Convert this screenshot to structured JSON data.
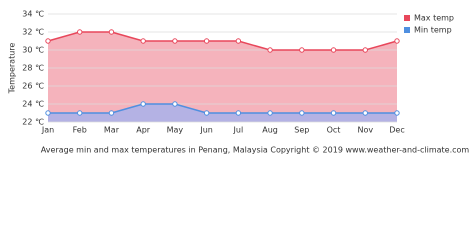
{
  "chart_data": {
    "type": "line",
    "title": "Average min and max temperatures in Penang, Malaysia   Copyright © 2019 www.weather-and-climate.com",
    "ylabel": "Temperature",
    "categories": [
      "Jan",
      "Feb",
      "Mar",
      "Apr",
      "May",
      "Jun",
      "Jul",
      "Aug",
      "Sep",
      "Oct",
      "Nov",
      "Dec"
    ],
    "series": [
      {
        "name": "Max temp",
        "color": "#e8475b",
        "fill": "#f5b3bc",
        "values": [
          31,
          32,
          32,
          31,
          31,
          31,
          31,
          30,
          30,
          30,
          30,
          31
        ]
      },
      {
        "name": "Min temp",
        "color": "#4f8fe0",
        "fill": "#b4b2e4",
        "values": [
          23,
          23,
          23,
          24,
          24,
          23,
          23,
          23,
          23,
          23,
          23,
          23
        ]
      }
    ],
    "ylim": [
      22,
      34
    ],
    "yticks": [
      {
        "value": 22,
        "label": "22 ℃"
      },
      {
        "value": 24,
        "label": "24 ℃"
      },
      {
        "value": 26,
        "label": "26 ℃"
      },
      {
        "value": 28,
        "label": "28 ℃"
      },
      {
        "value": 30,
        "label": "30 ℃"
      },
      {
        "value": 32,
        "label": "32 ℃"
      },
      {
        "value": 34,
        "label": "34 ℃"
      }
    ],
    "grid": true,
    "legend": "top-right"
  }
}
